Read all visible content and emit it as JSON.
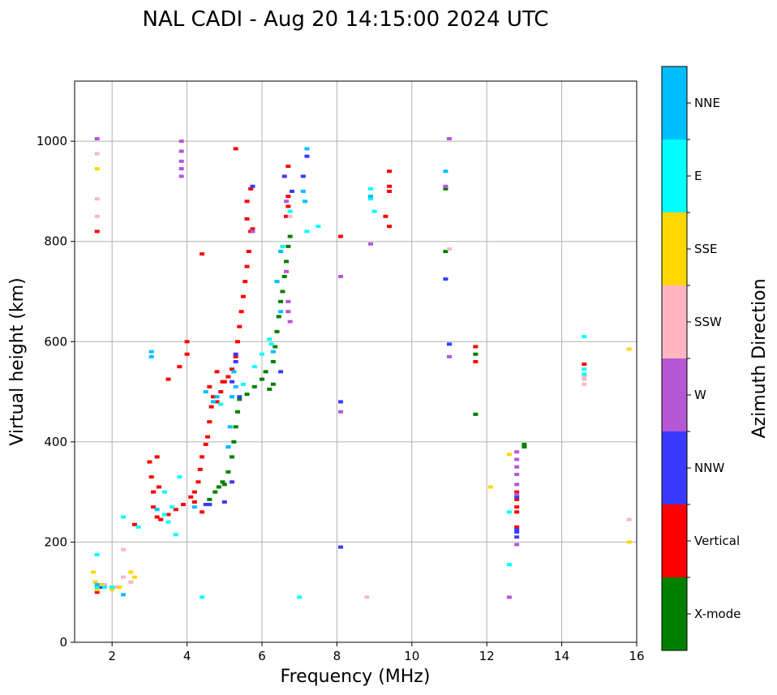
{
  "chart_data": {
    "type": "scatter",
    "title": "NAL CADI - Aug 20 14:15:00 2024 UTC",
    "xlabel": "Frequency (MHz)",
    "ylabel": "Virtual height (km)",
    "xlim": [
      1,
      16
    ],
    "ylim": [
      0,
      1120
    ],
    "xticks": [
      2,
      4,
      6,
      8,
      10,
      12,
      14,
      16
    ],
    "yticks": [
      0,
      200,
      400,
      600,
      800,
      1000
    ],
    "grid": true,
    "colorbar": {
      "label": "Azimuth Direction",
      "categories": [
        {
          "name": "X-mode",
          "color": "#008000"
        },
        {
          "name": "Vertical",
          "color": "#ff0000"
        },
        {
          "name": "NNW",
          "color": "#3a3aff"
        },
        {
          "name": "W",
          "color": "#b657d6"
        },
        {
          "name": "SSW",
          "color": "#ffb6c1"
        },
        {
          "name": "SSE",
          "color": "#ffd700"
        },
        {
          "name": "E",
          "color": "#00ffff"
        },
        {
          "name": "NNE",
          "color": "#00bfff"
        }
      ]
    },
    "series": [
      {
        "name": "X-mode",
        "points": [
          [
            5.0,
            315
          ],
          [
            5.1,
            340
          ],
          [
            5.2,
            370
          ],
          [
            5.25,
            400
          ],
          [
            5.3,
            430
          ],
          [
            5.35,
            460
          ],
          [
            5.4,
            485
          ],
          [
            5.6,
            495
          ],
          [
            5.8,
            510
          ],
          [
            6.0,
            525
          ],
          [
            6.1,
            540
          ],
          [
            6.3,
            560
          ],
          [
            6.35,
            590
          ],
          [
            6.4,
            620
          ],
          [
            6.45,
            650
          ],
          [
            6.5,
            680
          ],
          [
            6.55,
            700
          ],
          [
            6.6,
            730
          ],
          [
            6.65,
            760
          ],
          [
            6.7,
            790
          ],
          [
            6.75,
            810
          ],
          [
            4.6,
            285
          ],
          [
            4.75,
            300
          ],
          [
            4.85,
            310
          ],
          [
            4.95,
            320
          ],
          [
            6.2,
            505
          ],
          [
            6.3,
            515
          ],
          [
            13.0,
            395
          ],
          [
            13.0,
            390
          ],
          [
            11.7,
            575
          ],
          [
            11.7,
            455
          ],
          [
            10.9,
            905
          ],
          [
            10.9,
            780
          ]
        ]
      },
      {
        "name": "Vertical",
        "points": [
          [
            3.0,
            360
          ],
          [
            3.05,
            330
          ],
          [
            3.1,
            300
          ],
          [
            3.1,
            270
          ],
          [
            3.2,
            250
          ],
          [
            3.3,
            245
          ],
          [
            3.5,
            255
          ],
          [
            3.7,
            265
          ],
          [
            3.9,
            275
          ],
          [
            4.1,
            290
          ],
          [
            4.2,
            300
          ],
          [
            4.3,
            320
          ],
          [
            4.35,
            345
          ],
          [
            4.4,
            370
          ],
          [
            4.5,
            395
          ],
          [
            4.55,
            410
          ],
          [
            4.6,
            440
          ],
          [
            4.65,
            470
          ],
          [
            4.7,
            490
          ],
          [
            4.8,
            480
          ],
          [
            4.9,
            500
          ],
          [
            5.0,
            520
          ],
          [
            5.1,
            530
          ],
          [
            5.2,
            545
          ],
          [
            5.3,
            570
          ],
          [
            5.35,
            600
          ],
          [
            5.4,
            630
          ],
          [
            5.45,
            660
          ],
          [
            5.5,
            690
          ],
          [
            5.55,
            720
          ],
          [
            5.6,
            750
          ],
          [
            5.65,
            780
          ],
          [
            5.7,
            820
          ],
          [
            5.6,
            845
          ],
          [
            5.6,
            880
          ],
          [
            5.7,
            905
          ],
          [
            5.3,
            985
          ],
          [
            6.7,
            870
          ],
          [
            6.7,
            890
          ],
          [
            6.7,
            950
          ],
          [
            4.4,
            775
          ],
          [
            4.0,
            600
          ],
          [
            4.0,
            575
          ],
          [
            3.8,
            550
          ],
          [
            3.5,
            525
          ],
          [
            3.2,
            370
          ],
          [
            3.25,
            310
          ],
          [
            4.2,
            280
          ],
          [
            4.4,
            260
          ],
          [
            4.6,
            510
          ],
          [
            4.8,
            540
          ],
          [
            4.95,
            520
          ],
          [
            6.65,
            850
          ],
          [
            9.4,
            910
          ],
          [
            9.4,
            900
          ],
          [
            9.4,
            940
          ],
          [
            9.4,
            830
          ],
          [
            9.3,
            850
          ],
          [
            12.8,
            300
          ],
          [
            12.8,
            285
          ],
          [
            12.8,
            270
          ],
          [
            12.8,
            260
          ],
          [
            12.8,
            230
          ],
          [
            11.7,
            590
          ],
          [
            11.7,
            560
          ],
          [
            14.6,
            555
          ],
          [
            1.6,
            820
          ],
          [
            1.6,
            100
          ],
          [
            2.6,
            235
          ],
          [
            8.1,
            810
          ],
          [
            5.75,
            825
          ]
        ]
      },
      {
        "name": "NNW",
        "points": [
          [
            5.3,
            560
          ],
          [
            5.2,
            520
          ],
          [
            5.4,
            490
          ],
          [
            5.1,
            390
          ],
          [
            5.2,
            320
          ],
          [
            4.5,
            275
          ],
          [
            4.6,
            275
          ],
          [
            5.0,
            280
          ],
          [
            6.6,
            930
          ],
          [
            7.1,
            930
          ],
          [
            7.2,
            970
          ],
          [
            6.8,
            900
          ],
          [
            8.1,
            480
          ],
          [
            8.1,
            190
          ],
          [
            10.9,
            725
          ],
          [
            11.0,
            595
          ],
          [
            12.8,
            225
          ],
          [
            12.8,
            220
          ],
          [
            12.8,
            210
          ],
          [
            12.8,
            290
          ],
          [
            5.3,
            575
          ],
          [
            6.5,
            540
          ],
          [
            1.7,
            110
          ],
          [
            5.75,
            910
          ]
        ]
      },
      {
        "name": "W",
        "points": [
          [
            3.85,
            1000
          ],
          [
            3.85,
            980
          ],
          [
            3.85,
            960
          ],
          [
            3.85,
            945
          ],
          [
            3.85,
            930
          ],
          [
            6.7,
            680
          ],
          [
            6.7,
            660
          ],
          [
            6.75,
            640
          ],
          [
            8.1,
            460
          ],
          [
            8.1,
            730
          ],
          [
            8.9,
            795
          ],
          [
            10.9,
            910
          ],
          [
            11.0,
            1005
          ],
          [
            11.0,
            570
          ],
          [
            12.8,
            380
          ],
          [
            12.8,
            365
          ],
          [
            12.8,
            350
          ],
          [
            12.8,
            335
          ],
          [
            12.8,
            315
          ],
          [
            12.8,
            295
          ],
          [
            12.8,
            195
          ],
          [
            12.6,
            90
          ],
          [
            1.6,
            1005
          ],
          [
            6.65,
            740
          ],
          [
            6.65,
            880
          ],
          [
            5.75,
            820
          ]
        ]
      },
      {
        "name": "SSW",
        "points": [
          [
            1.6,
            975
          ],
          [
            1.6,
            885
          ],
          [
            1.6,
            850
          ],
          [
            2.3,
            185
          ],
          [
            2.3,
            130
          ],
          [
            8.8,
            90
          ],
          [
            11.0,
            785
          ],
          [
            14.6,
            515
          ],
          [
            14.6,
            525
          ],
          [
            14.6,
            530
          ],
          [
            15.8,
            245
          ],
          [
            6.75,
            850
          ],
          [
            2.5,
            120
          ],
          [
            1.8,
            115
          ],
          [
            2.1,
            110
          ]
        ]
      },
      {
        "name": "SSE",
        "points": [
          [
            1.6,
            945
          ],
          [
            1.5,
            140
          ],
          [
            1.55,
            120
          ],
          [
            1.6,
            105
          ],
          [
            1.7,
            115
          ],
          [
            2.0,
            105
          ],
          [
            2.2,
            110
          ],
          [
            2.5,
            140
          ],
          [
            2.6,
            130
          ],
          [
            12.1,
            310
          ],
          [
            12.6,
            375
          ],
          [
            15.8,
            585
          ],
          [
            15.8,
            200
          ]
        ]
      },
      {
        "name": "E",
        "points": [
          [
            6.2,
            605
          ],
          [
            6.25,
            595
          ],
          [
            6.0,
            575
          ],
          [
            5.8,
            550
          ],
          [
            5.5,
            515
          ],
          [
            5.2,
            490
          ],
          [
            4.9,
            475
          ],
          [
            3.8,
            330
          ],
          [
            3.4,
            300
          ],
          [
            3.6,
            270
          ],
          [
            3.5,
            240
          ],
          [
            2.3,
            250
          ],
          [
            2.7,
            230
          ],
          [
            1.6,
            175
          ],
          [
            1.6,
            110
          ],
          [
            1.8,
            110
          ],
          [
            2.0,
            110
          ],
          [
            8.9,
            885
          ],
          [
            9.0,
            860
          ],
          [
            8.9,
            905
          ],
          [
            12.6,
            260
          ],
          [
            12.6,
            155
          ],
          [
            14.6,
            610
          ],
          [
            14.6,
            545
          ],
          [
            14.6,
            535
          ],
          [
            7.2,
            820
          ],
          [
            7.5,
            830
          ],
          [
            7.0,
            90
          ],
          [
            4.4,
            90
          ],
          [
            3.7,
            215
          ],
          [
            3.4,
            255
          ],
          [
            6.5,
            780
          ],
          [
            6.55,
            790
          ],
          [
            6.75,
            860
          ]
        ]
      },
      {
        "name": "NNE",
        "points": [
          [
            5.25,
            540
          ],
          [
            5.3,
            510
          ],
          [
            5.2,
            490
          ],
          [
            5.15,
            430
          ],
          [
            5.1,
            390
          ],
          [
            4.8,
            490
          ],
          [
            4.7,
            480
          ],
          [
            4.5,
            500
          ],
          [
            6.5,
            780
          ],
          [
            6.4,
            720
          ],
          [
            6.5,
            660
          ],
          [
            7.1,
            900
          ],
          [
            7.15,
            880
          ],
          [
            7.2,
            985
          ],
          [
            8.9,
            890
          ],
          [
            10.9,
            940
          ],
          [
            3.05,
            580
          ],
          [
            3.05,
            570
          ],
          [
            2.3,
            95
          ],
          [
            1.6,
            115
          ],
          [
            4.2,
            270
          ],
          [
            3.2,
            265
          ],
          [
            6.3,
            580
          ]
        ]
      }
    ]
  }
}
